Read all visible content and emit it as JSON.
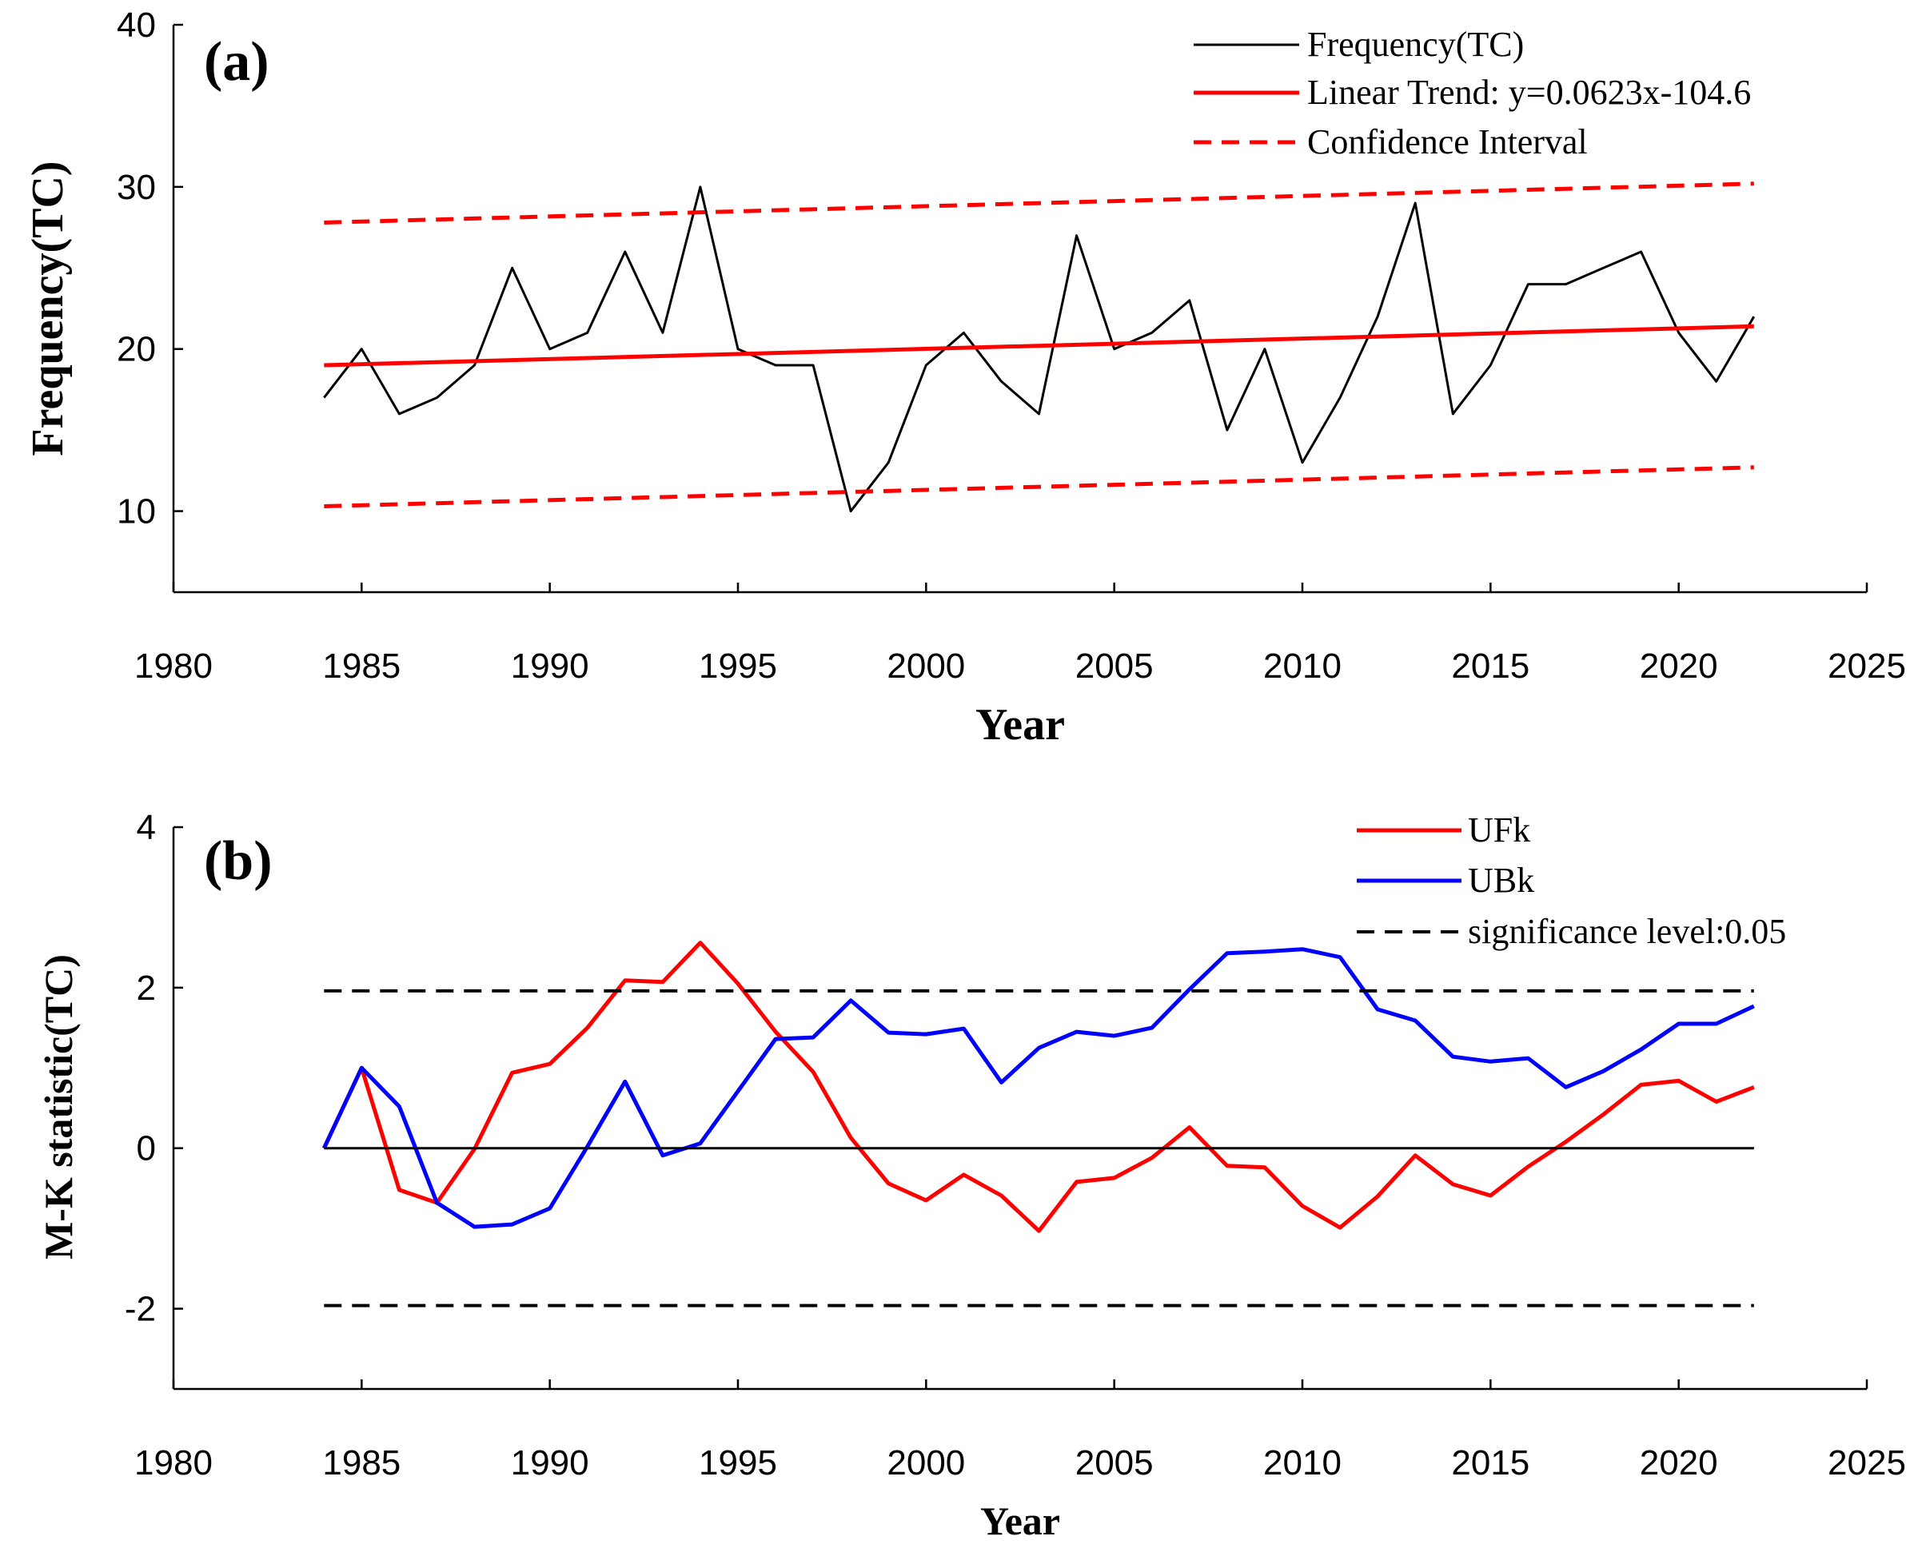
{
  "chart_data": [
    {
      "type": "line",
      "panel_label": "(a)",
      "xlabel": "Year",
      "ylabel": "Frequency(TC)",
      "xlim": [
        1980,
        2025
      ],
      "ylim": [
        5,
        40
      ],
      "xticks": [
        1980,
        1985,
        1990,
        1995,
        2000,
        2005,
        2010,
        2015,
        2020,
        2025
      ],
      "yticks": [
        10,
        20,
        30,
        40
      ],
      "legend_position": "top-right",
      "series": [
        {
          "name": "Frequency(TC)",
          "color": "#000000",
          "style": "solid",
          "x": [
            1984,
            1985,
            1986,
            1987,
            1988,
            1989,
            1990,
            1991,
            1992,
            1993,
            1994,
            1995,
            1996,
            1997,
            1998,
            1999,
            2000,
            2001,
            2002,
            2003,
            2004,
            2005,
            2006,
            2007,
            2008,
            2009,
            2010,
            2011,
            2012,
            2013,
            2014,
            2015,
            2016,
            2017,
            2018,
            2019,
            2020,
            2021,
            2022
          ],
          "values": [
            17,
            20,
            16,
            17,
            19,
            25,
            20,
            21,
            26,
            21,
            30,
            20,
            19,
            19,
            10,
            13,
            19,
            21,
            18,
            16,
            27,
            20,
            21,
            23,
            15,
            20,
            13,
            17,
            22,
            29,
            16,
            19,
            24,
            24,
            25,
            26,
            21,
            18,
            22
          ]
        },
        {
          "name": "Linear Trend: y=0.0623x-104.6",
          "color": "#ff0000",
          "style": "solid",
          "x": [
            1984,
            2022
          ],
          "values": [
            19.0,
            21.4
          ]
        },
        {
          "name": "Confidence Interval",
          "color": "#ff0000",
          "style": "dashed",
          "x": [
            1984,
            2022
          ],
          "values": [
            27.8,
            30.2
          ]
        },
        {
          "name": "Confidence Interval (lower)",
          "color": "#ff0000",
          "style": "dashed",
          "in_legend": false,
          "x": [
            1984,
            2022
          ],
          "values": [
            10.3,
            12.7
          ]
        }
      ]
    },
    {
      "type": "line",
      "panel_label": "(b)",
      "xlabel": "Year",
      "ylabel": "M-K statistic(TC)",
      "xlim": [
        1980,
        2025
      ],
      "ylim": [
        -3,
        4
      ],
      "xticks": [
        1980,
        1985,
        1990,
        1995,
        2000,
        2005,
        2010,
        2015,
        2020,
        2025
      ],
      "yticks": [
        -2,
        0,
        2,
        4
      ],
      "legend_position": "top-right",
      "series": [
        {
          "name": "UFk",
          "color": "#ff0000",
          "style": "solid",
          "x": [
            1984,
            1985,
            1986,
            1987,
            1988,
            1989,
            1990,
            1991,
            1992,
            1993,
            1994,
            1995,
            1996,
            1997,
            1998,
            1999,
            2000,
            2001,
            2002,
            2003,
            2004,
            2005,
            2006,
            2007,
            2008,
            2009,
            2010,
            2011,
            2012,
            2013,
            2014,
            2015,
            2016,
            2017,
            2018,
            2019,
            2020,
            2021,
            2022
          ],
          "values": [
            0,
            1.0,
            -0.52,
            -0.68,
            -0.01,
            0.94,
            1.05,
            1.5,
            2.09,
            2.07,
            2.56,
            2.05,
            1.45,
            0.95,
            0.13,
            -0.44,
            -0.65,
            -0.33,
            -0.59,
            -1.03,
            -0.42,
            -0.37,
            -0.12,
            0.26,
            -0.22,
            -0.24,
            -0.72,
            -0.99,
            -0.6,
            -0.09,
            -0.45,
            -0.59,
            -0.23,
            0.08,
            0.42,
            0.79,
            0.84,
            0.58,
            0.76
          ]
        },
        {
          "name": "UBk",
          "color": "#0000ff",
          "style": "solid",
          "x": [
            1984,
            1985,
            1986,
            1987,
            1988,
            1989,
            1990,
            1991,
            1992,
            1993,
            1994,
            1995,
            1996,
            1997,
            1998,
            1999,
            2000,
            2001,
            2002,
            2003,
            2004,
            2005,
            2006,
            2007,
            2008,
            2009,
            2010,
            2011,
            2012,
            2013,
            2014,
            2015,
            2016,
            2017,
            2018,
            2019,
            2020,
            2021,
            2022
          ],
          "values": [
            0,
            1.0,
            0.52,
            -0.68,
            -0.98,
            -0.95,
            -0.75,
            0.02,
            0.83,
            -0.09,
            0.06,
            0.71,
            1.36,
            1.38,
            1.84,
            1.44,
            1.42,
            1.49,
            0.82,
            1.25,
            1.45,
            1.4,
            1.5,
            1.98,
            2.43,
            2.45,
            2.48,
            2.38,
            1.73,
            1.59,
            1.14,
            1.08,
            1.12,
            0.76,
            0.96,
            1.23,
            1.55,
            1.55,
            1.77
          ]
        },
        {
          "name": "significance level:0.05",
          "color": "#000000",
          "style": "dashed",
          "x": [
            1984,
            2022
          ],
          "values": [
            1.96,
            1.96
          ]
        },
        {
          "name": "significance level (lower)",
          "color": "#000000",
          "style": "dashed",
          "in_legend": false,
          "x": [
            1984,
            2022
          ],
          "values": [
            -1.96,
            -1.96
          ]
        },
        {
          "name": "zero line",
          "color": "#000000",
          "style": "solid",
          "in_legend": false,
          "x": [
            1984,
            2022
          ],
          "values": [
            0,
            0
          ]
        }
      ]
    }
  ]
}
